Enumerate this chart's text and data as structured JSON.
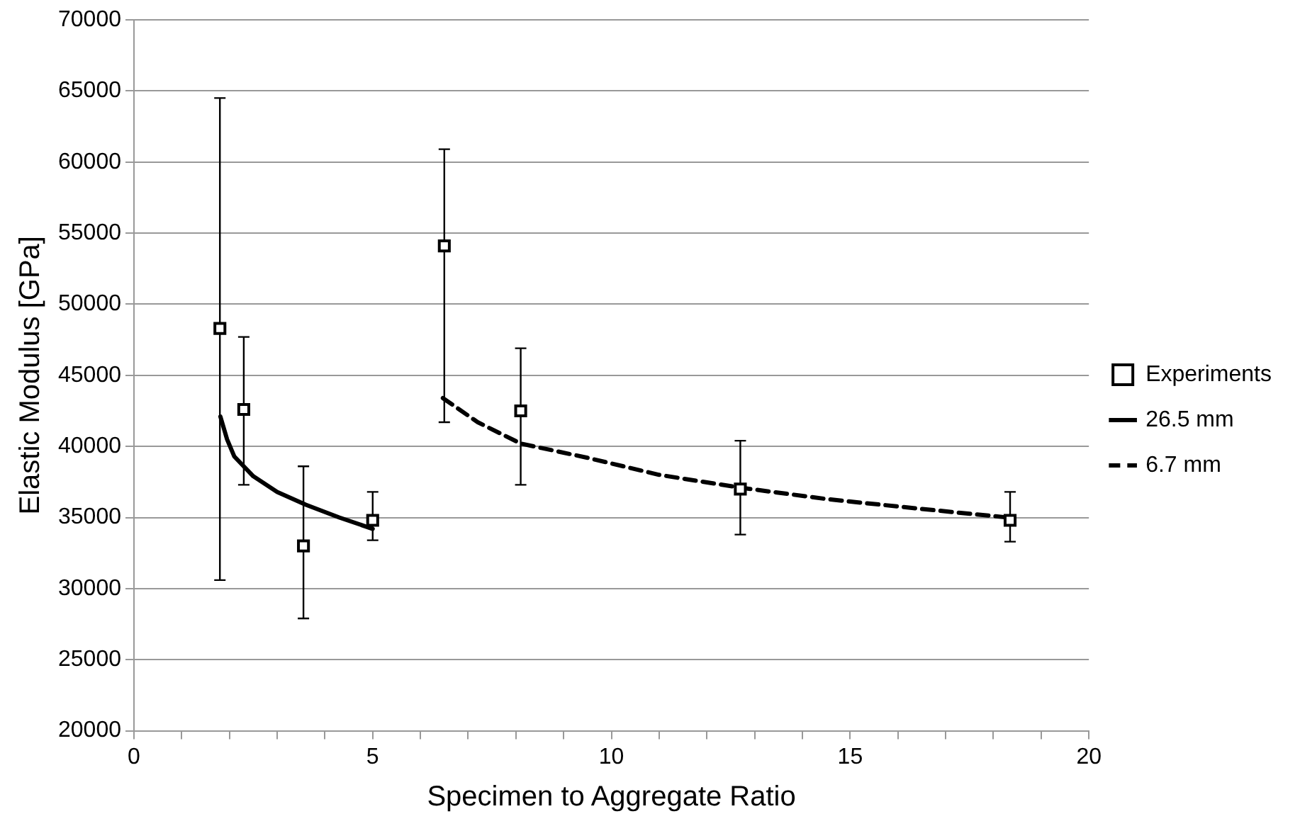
{
  "chart_data": {
    "type": "scatter",
    "xlabel": "Specimen to Aggregate Ratio",
    "ylabel": "Elastic Modulus [GPa]",
    "xlim": [
      0,
      20
    ],
    "xticks": [
      0,
      {
        "value": 1,
        "label": null
      },
      {
        "value": 2,
        "label": null
      },
      {
        "value": 3,
        "label": null
      },
      {
        "value": 4,
        "label": null
      },
      5,
      {
        "value": 6,
        "label": null
      },
      {
        "value": 7,
        "label": null
      },
      {
        "value": 8,
        "label": null
      },
      {
        "value": 9,
        "label": null
      },
      10,
      {
        "value": 11,
        "label": null
      },
      {
        "value": 12,
        "label": null
      },
      {
        "value": 13,
        "label": null
      },
      {
        "value": 14,
        "label": null
      },
      15,
      {
        "value": 16,
        "label": null
      },
      {
        "value": 17,
        "label": null
      },
      {
        "value": 18,
        "label": null
      },
      {
        "value": 19,
        "label": null
      },
      20
    ],
    "ylim": [
      20000,
      70000
    ],
    "yticks": [
      20000,
      25000,
      30000,
      35000,
      40000,
      45000,
      50000,
      55000,
      60000,
      65000,
      70000
    ],
    "grid": "y",
    "legend": "right",
    "series": [
      {
        "name": "Experiments",
        "marker": "square",
        "color": "#000000",
        "x": [
          1.8,
          2.3,
          3.55,
          5.0,
          6.5,
          8.1,
          12.7,
          18.35
        ],
        "values": [
          48300,
          42600,
          33000,
          34800,
          54100,
          42500,
          37000,
          34800
        ],
        "errors": [
          [
            30600,
            64500
          ],
          [
            37300,
            47700
          ],
          [
            27900,
            38600
          ],
          [
            33400,
            36800
          ],
          [
            41700,
            60900
          ],
          [
            37300,
            46900
          ],
          [
            33800,
            40400
          ],
          [
            33300,
            36800
          ]
        ]
      },
      {
        "name": "26.5 mm",
        "type": "line",
        "line_style": "solid",
        "marker": "none",
        "color": "#000000",
        "x": [
          1.81,
          1.95,
          2.1,
          2.5,
          3.0,
          3.6,
          4.3,
          5.0
        ],
        "values": [
          42100,
          40500,
          39300,
          37900,
          36800,
          35900,
          35000,
          34200
        ]
      },
      {
        "name": "6.7 mm",
        "type": "line",
        "line_style": "dashed",
        "marker": "none",
        "color": "#000000",
        "x": [
          6.47,
          7.2,
          8.1,
          9.5,
          11.0,
          12.7,
          14.5,
          16.5,
          18.3
        ],
        "values": [
          43400,
          41700,
          40200,
          39200,
          38000,
          37100,
          36300,
          35600,
          35000
        ]
      }
    ]
  }
}
